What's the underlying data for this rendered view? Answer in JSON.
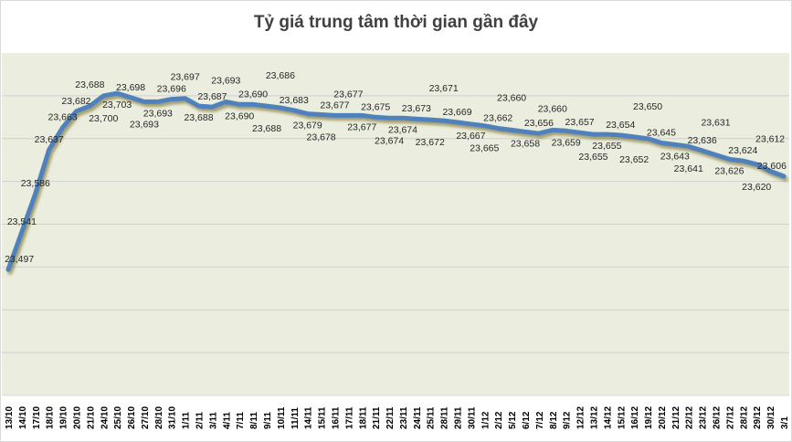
{
  "chart_data": {
    "type": "line",
    "title": "Tỷ giá trung tâm thời gian gần đây",
    "xlabel": "",
    "ylabel": "",
    "ylim": [
      23350,
      23750
    ],
    "y_gridlines": [
      23400,
      23450,
      23500,
      23550,
      23600,
      23650,
      23700
    ],
    "y_tick_labels_shown": false,
    "grid": true,
    "legend": "none",
    "colors": {
      "line": "#4f81bd",
      "plot_background": "#ebeedf",
      "grid": "#d0d0d0"
    },
    "categories": [
      "13/10",
      "14/10",
      "17/10",
      "18/10",
      "19/10",
      "20/10",
      "21/10",
      "24/10",
      "25/10",
      "26/10",
      "27/10",
      "28/10",
      "31/10",
      "1/11",
      "2/11",
      "3/11",
      "4/11",
      "7/11",
      "8/11",
      "9/11",
      "10/11",
      "11/11",
      "14/11",
      "15/11",
      "16/11",
      "17/11",
      "18/11",
      "21/11",
      "22/11",
      "23/11",
      "24/11",
      "25/11",
      "28/11",
      "29/11",
      "30/11",
      "1/12",
      "2/12",
      "5/12",
      "6/12",
      "7/12",
      "8/12",
      "9/12",
      "12/12",
      "13/12",
      "14/12",
      "15/12",
      "16/12",
      "19/12",
      "20/12",
      "21/12",
      "22/12",
      "23/12",
      "26/12",
      "27/12",
      "28/12",
      "29/12",
      "30/12",
      "3/1"
    ],
    "values": [
      23497,
      23541,
      23586,
      23637,
      23663,
      23682,
      23688,
      23700,
      23703,
      23698,
      23693,
      23693,
      23696,
      23697,
      23688,
      23687,
      23693,
      23690,
      23690,
      23688,
      23686,
      23683,
      23679,
      23678,
      23677,
      23677,
      23677,
      23675,
      23674,
      23674,
      23673,
      23672,
      23671,
      23669,
      23667,
      23665,
      23662,
      23660,
      23658,
      23656,
      23660,
      23659,
      23657,
      23655,
      23655,
      23654,
      23652,
      23650,
      23645,
      23643,
      23641,
      23636,
      23631,
      23626,
      23624,
      23620,
      23612,
      23606
    ],
    "value_labels": [
      "23,497",
      "23,541",
      "23,586",
      "23,637",
      "23,663",
      "23,682",
      "23,688",
      "23,700",
      "23,703",
      "23,698",
      "23,693",
      "23,693",
      "23,696",
      "23,697",
      "23,688",
      "23,687",
      "23,693",
      "23,690",
      "23,690",
      "23,688",
      "23,686",
      "23,683",
      "23,679",
      "23,678",
      "23,677",
      "23,677",
      "23,677",
      "23,675",
      "23,674",
      "23,674",
      "23,673",
      "23,672",
      "23,671",
      "23,669",
      "23,667",
      "23,665",
      "23,662",
      "23,660",
      "23,658",
      "23,656",
      "23,660",
      "23,659",
      "23,657",
      "23,655",
      "23,655",
      "23,654",
      "23,652",
      "23,650",
      "23,645",
      "23,643",
      "23,641",
      "23,636",
      "23,631",
      "23,626",
      "23,624",
      "23,620",
      "23,612",
      "23,606"
    ]
  }
}
